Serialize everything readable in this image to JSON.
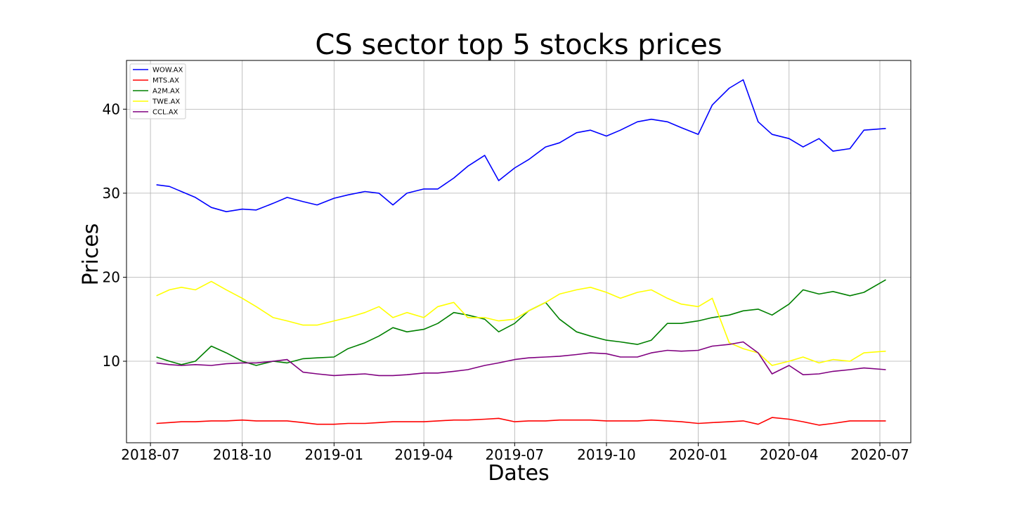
{
  "chart_data": {
    "type": "line",
    "title": "CS sector top 5 stocks prices",
    "xlabel": "Dates",
    "ylabel": "Prices",
    "x_ticks": [
      "2018-07",
      "2018-10",
      "2019-01",
      "2019-04",
      "2019-07",
      "2019-10",
      "2020-01",
      "2020-04",
      "2020-07"
    ],
    "y_ticks": [
      10,
      20,
      30,
      40
    ],
    "xlim": [
      "2018-06-07",
      "2020-08-01"
    ],
    "ylim": [
      0.3,
      45.8
    ],
    "grid": true,
    "legend_position": "top-left",
    "x": [
      "2018-07-07",
      "2018-07-20",
      "2018-08-01",
      "2018-08-15",
      "2018-08-31",
      "2018-09-15",
      "2018-10-01",
      "2018-10-15",
      "2018-11-01",
      "2018-11-15",
      "2018-12-01",
      "2018-12-15",
      "2019-01-01",
      "2019-01-15",
      "2019-02-01",
      "2019-02-15",
      "2019-03-01",
      "2019-03-15",
      "2019-04-01",
      "2019-04-15",
      "2019-05-01",
      "2019-05-15",
      "2019-06-01",
      "2019-06-15",
      "2019-07-01",
      "2019-07-15",
      "2019-08-01",
      "2019-08-15",
      "2019-09-01",
      "2019-09-15",
      "2019-10-01",
      "2019-10-15",
      "2019-11-01",
      "2019-11-15",
      "2019-12-01",
      "2019-12-15",
      "2020-01-01",
      "2020-01-15",
      "2020-02-01",
      "2020-02-15",
      "2020-03-01",
      "2020-03-15",
      "2020-04-01",
      "2020-04-15",
      "2020-05-01",
      "2020-05-15",
      "2020-06-01",
      "2020-06-15",
      "2020-07-07"
    ],
    "series": [
      {
        "name": "WOW.AX",
        "color": "#0000ff",
        "values": [
          31.0,
          30.8,
          30.2,
          29.5,
          28.3,
          27.8,
          28.1,
          28.0,
          28.8,
          29.5,
          29.0,
          28.6,
          29.4,
          29.8,
          30.2,
          30.0,
          28.6,
          30.0,
          30.5,
          30.5,
          31.8,
          33.2,
          34.5,
          31.5,
          33.0,
          34.0,
          35.5,
          36.0,
          37.2,
          37.5,
          36.8,
          37.5,
          38.5,
          38.8,
          38.5,
          37.8,
          37.0,
          40.5,
          42.5,
          43.5,
          38.5,
          37.0,
          36.5,
          35.5,
          36.5,
          35.0,
          35.3,
          37.5,
          37.7
        ]
      },
      {
        "name": "MTS.AX",
        "color": "#ff0000",
        "values": [
          2.6,
          2.7,
          2.8,
          2.8,
          2.9,
          2.9,
          3.0,
          2.9,
          2.9,
          2.9,
          2.7,
          2.5,
          2.5,
          2.6,
          2.6,
          2.7,
          2.8,
          2.8,
          2.8,
          2.9,
          3.0,
          3.0,
          3.1,
          3.2,
          2.8,
          2.9,
          2.9,
          3.0,
          3.0,
          3.0,
          2.9,
          2.9,
          2.9,
          3.0,
          2.9,
          2.8,
          2.6,
          2.7,
          2.8,
          2.9,
          2.5,
          3.3,
          3.1,
          2.8,
          2.4,
          2.6,
          2.9,
          2.9,
          2.9
        ]
      },
      {
        "name": "A2M.AX",
        "color": "#008000",
        "values": [
          10.5,
          10.0,
          9.6,
          10.0,
          11.8,
          11.0,
          10.0,
          9.5,
          10.0,
          9.8,
          10.3,
          10.4,
          10.5,
          11.5,
          12.2,
          13.0,
          14.0,
          13.5,
          13.8,
          14.5,
          15.8,
          15.5,
          15.0,
          13.5,
          14.5,
          16.0,
          17.0,
          15.0,
          13.5,
          13.0,
          12.5,
          12.3,
          12.0,
          12.5,
          14.5,
          14.5,
          14.8,
          15.2,
          15.5,
          16.0,
          16.2,
          15.5,
          16.8,
          18.5,
          18.0,
          18.3,
          17.8,
          18.2,
          19.7
        ]
      },
      {
        "name": "TWE.AX",
        "color": "#ffff00",
        "values": [
          17.8,
          18.5,
          18.8,
          18.5,
          19.5,
          18.5,
          17.5,
          16.5,
          15.2,
          14.8,
          14.3,
          14.3,
          14.8,
          15.2,
          15.8,
          16.5,
          15.2,
          15.8,
          15.2,
          16.5,
          17.0,
          15.2,
          15.2,
          14.8,
          15.0,
          16.0,
          17.0,
          18.0,
          18.5,
          18.8,
          18.2,
          17.5,
          18.2,
          18.5,
          17.5,
          16.8,
          16.5,
          17.5,
          12.2,
          11.5,
          11.0,
          9.5,
          10.0,
          10.5,
          9.8,
          10.2,
          10.0,
          11.0,
          11.2
        ]
      },
      {
        "name": "CCL.AX",
        "color": "#800080",
        "values": [
          9.8,
          9.6,
          9.5,
          9.6,
          9.5,
          9.7,
          9.8,
          9.8,
          10.0,
          10.2,
          8.7,
          8.5,
          8.3,
          8.4,
          8.5,
          8.3,
          8.3,
          8.4,
          8.6,
          8.6,
          8.8,
          9.0,
          9.5,
          9.8,
          10.2,
          10.4,
          10.5,
          10.6,
          10.8,
          11.0,
          10.9,
          10.5,
          10.5,
          11.0,
          11.3,
          11.2,
          11.3,
          11.8,
          12.0,
          12.3,
          11.0,
          8.5,
          9.5,
          8.4,
          8.5,
          8.8,
          9.0,
          9.2,
          9.0
        ]
      }
    ]
  }
}
